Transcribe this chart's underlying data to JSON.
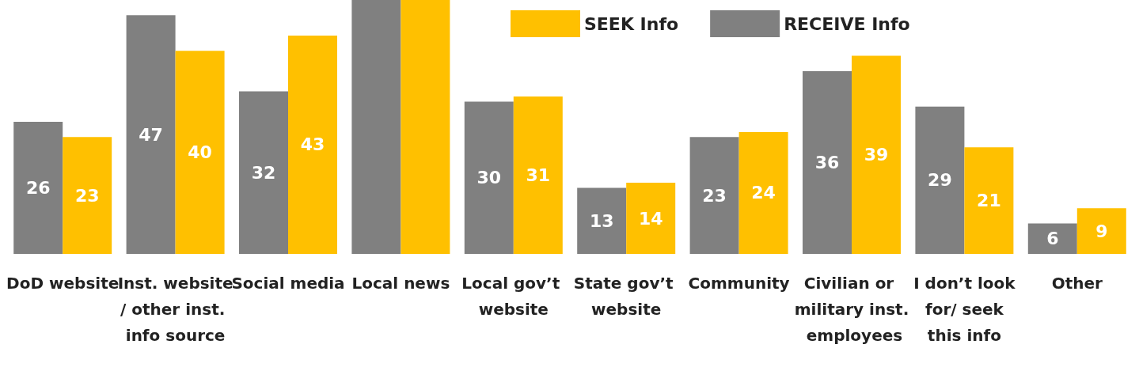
{
  "chart_data": {
    "type": "bar",
    "categories": [
      "DoD website",
      "Inst. website/ other inst. info source",
      "Social media",
      "Local news",
      "Local gov’t website",
      "State gov’t website",
      "Community",
      "Civilian or military inst. employees",
      "I don’t look for/ seek this info",
      "Other"
    ],
    "series": [
      {
        "name": "RECEIVE Info",
        "color": "#808080",
        "values": [
          26,
          47,
          32,
          50,
          30,
          13,
          23,
          36,
          29,
          6
        ],
        "value_labels": [
          "26",
          "47",
          "32",
          null,
          "30",
          "13",
          "23",
          "36",
          "29",
          "6"
        ]
      },
      {
        "name": "SEEK Info",
        "color": "#ffc000",
        "values": [
          23,
          40,
          43,
          50,
          31,
          14,
          24,
          39,
          21,
          9
        ],
        "value_labels": [
          "23",
          "40",
          "43",
          null,
          "31",
          "14",
          "24",
          "39",
          "21",
          "9"
        ]
      }
    ],
    "ylim": [
      0,
      50
    ],
    "legend": "top right",
    "grid": false
  }
}
